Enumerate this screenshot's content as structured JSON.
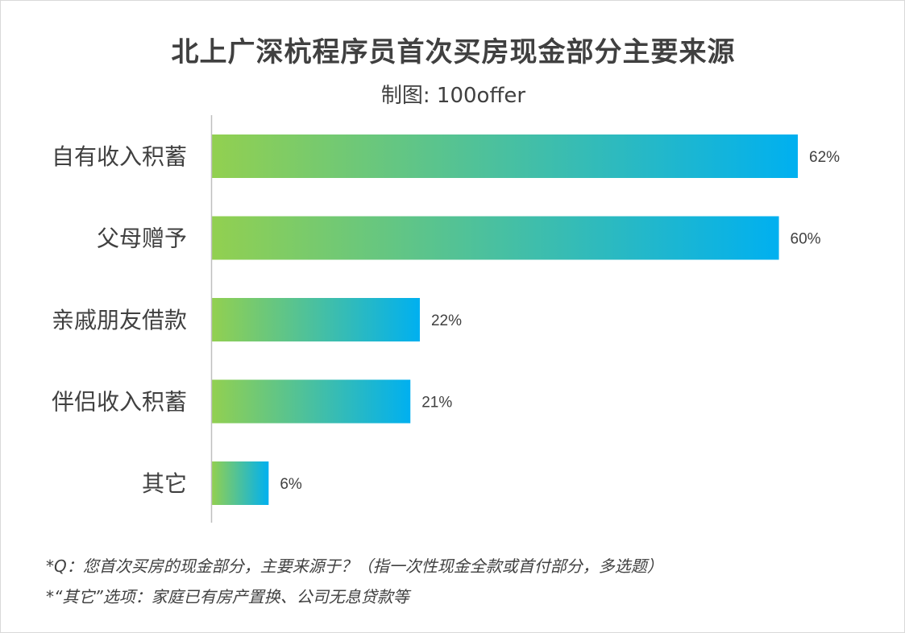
{
  "title": "北上广深杭程序员首次买房现金部分主要来源",
  "subtitle": "制图: 100offer",
  "colors": {
    "gradient_start": "#92D050",
    "gradient_end": "#00B0F0",
    "text": "#404040",
    "axis": "#bfbfbf"
  },
  "chart_data": {
    "type": "bar",
    "orientation": "horizontal",
    "categories": [
      "自有收入积蓄",
      "父母赠予",
      "亲戚朋友借款",
      "伴侣收入积蓄",
      "其它"
    ],
    "values": [
      62,
      60,
      22,
      21,
      6
    ],
    "value_labels": [
      "62%",
      "60%",
      "22%",
      "21%",
      "6%"
    ],
    "unit": "%",
    "xlim": [
      0,
      100
    ],
    "grid": false,
    "legend": "none"
  },
  "notes": {
    "question": "*Q：您首次买房的现金部分，主要来源于？（指一次性现金全款或首付部分，多选题）",
    "other_def": "*“其它”选项：家庭已有房产置换、公司无息贷款等"
  }
}
